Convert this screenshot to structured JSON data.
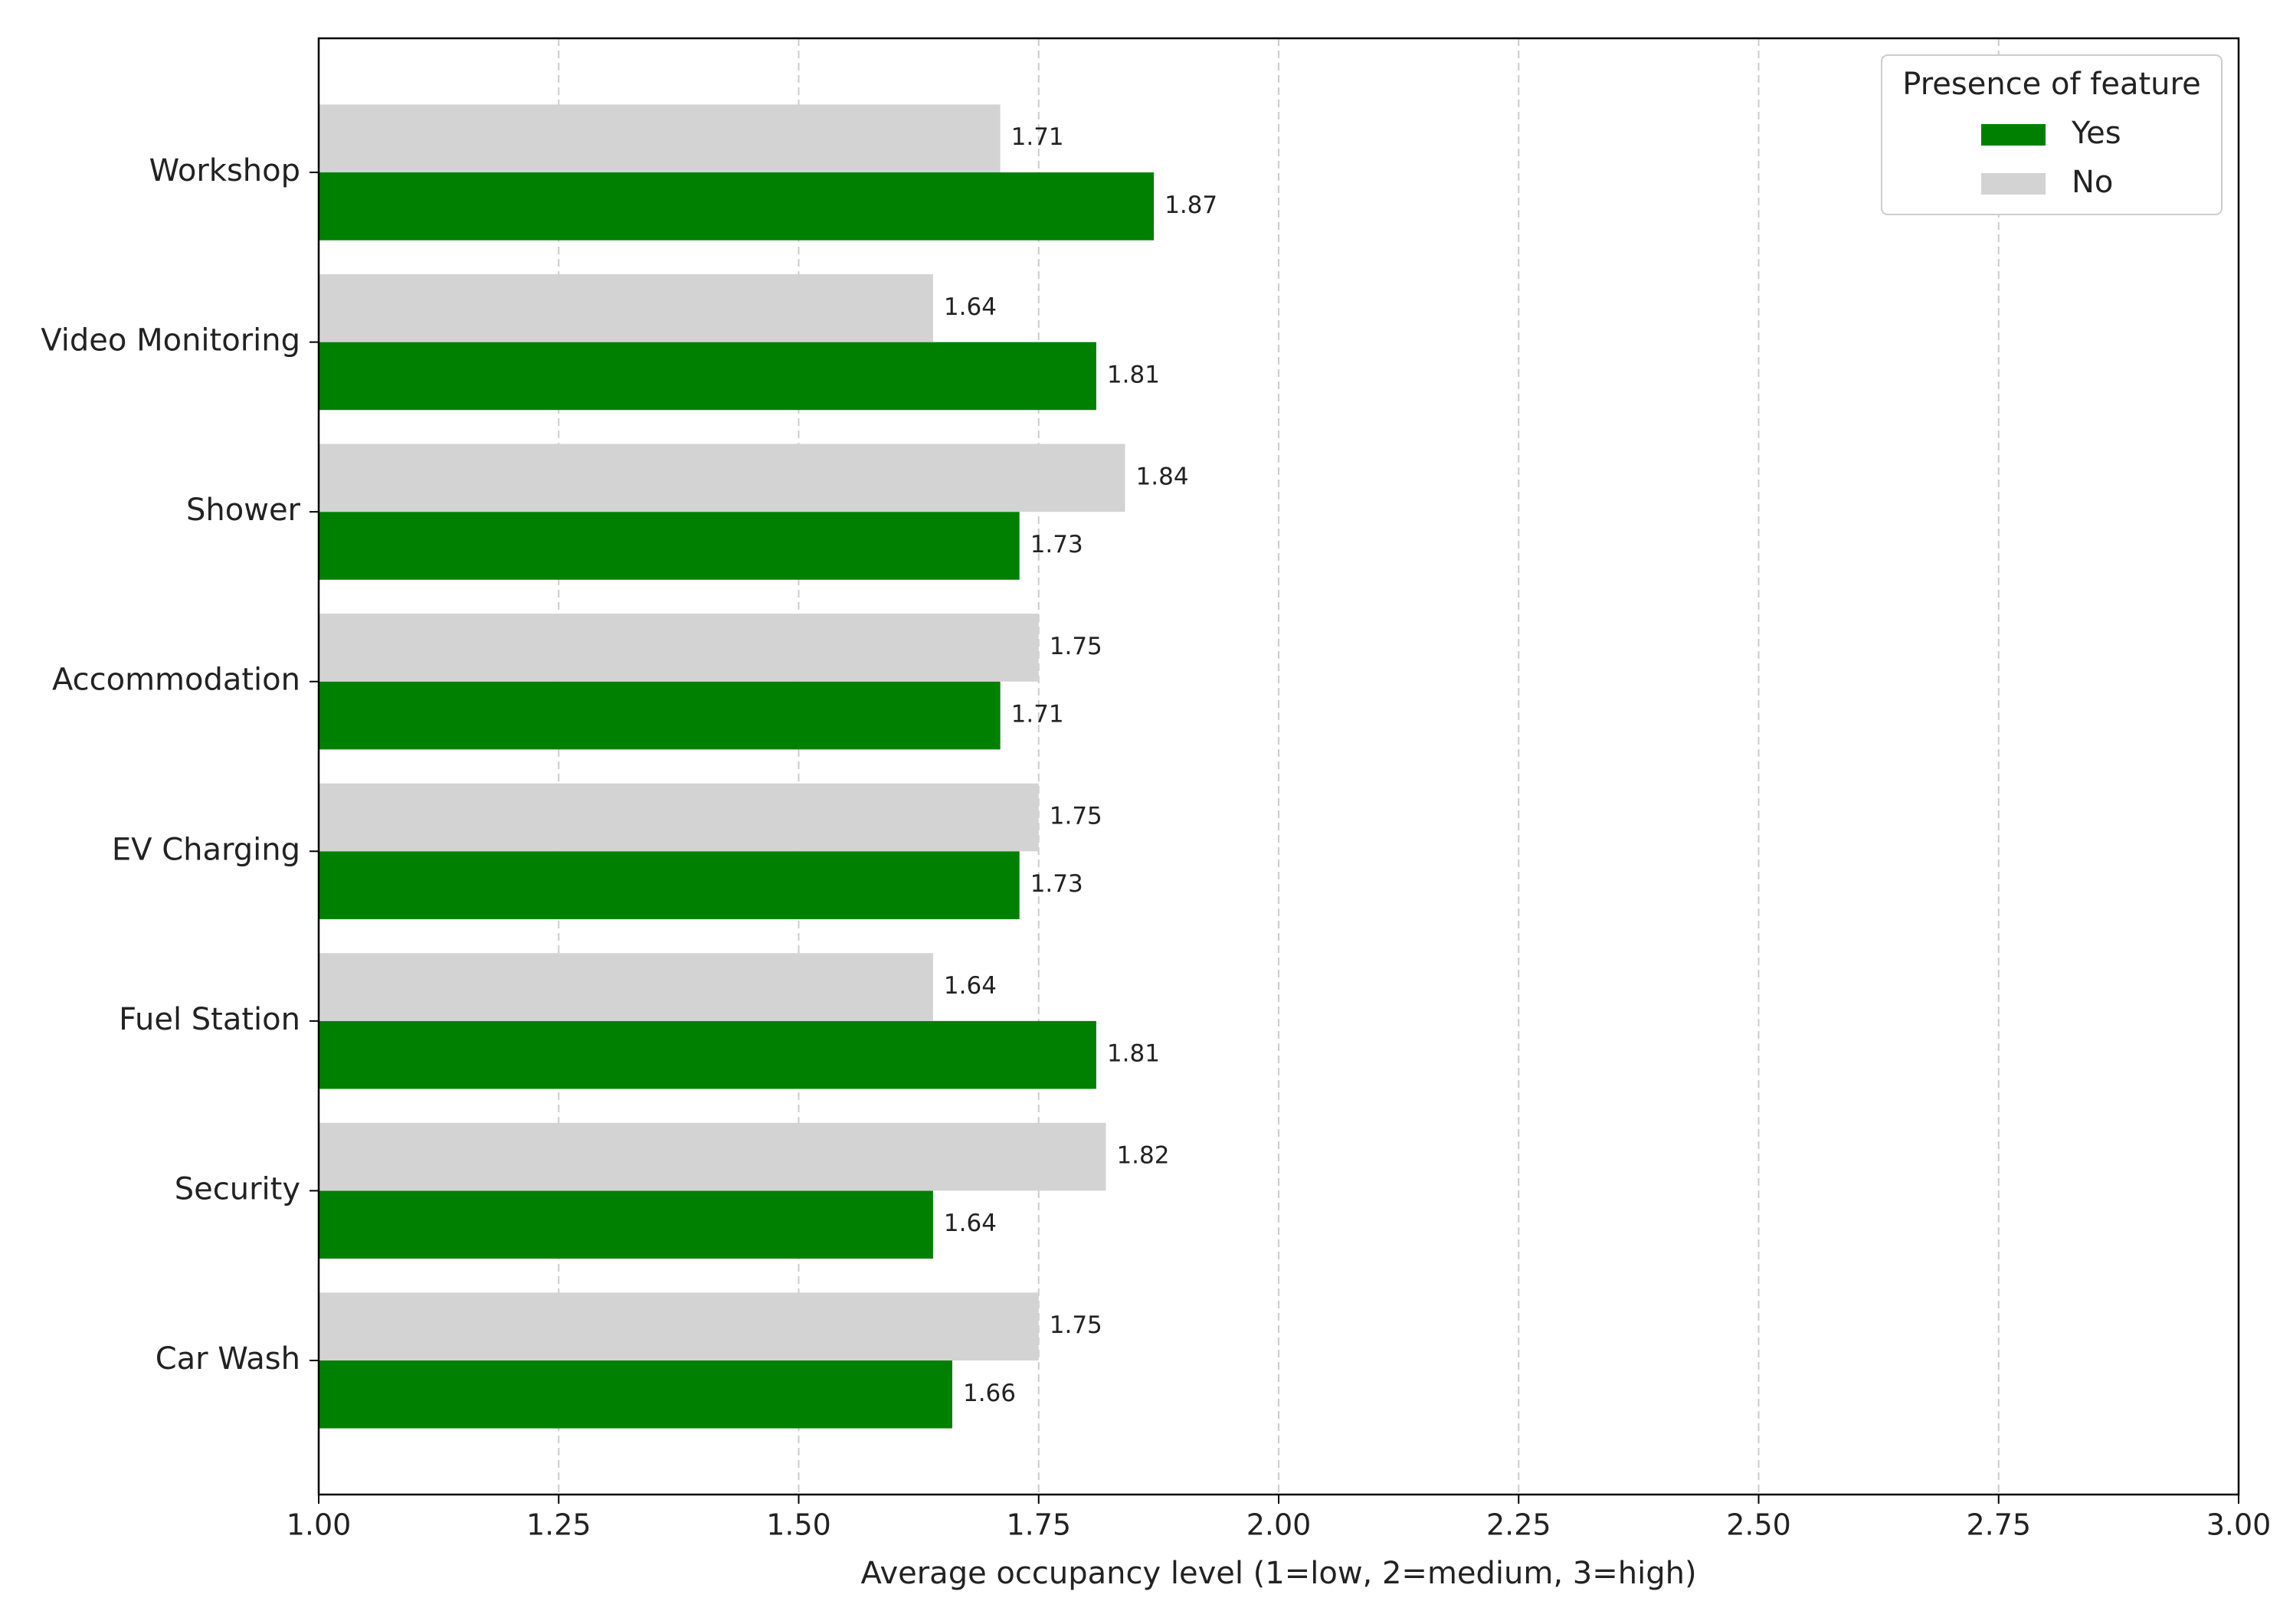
{
  "chart_data": {
    "type": "barh",
    "x_label": "Average occupancy level (1=low, 2=medium, 3=high)",
    "categories": [
      "Workshop",
      "Video Monitoring",
      "Shower",
      "Accommodation",
      "EV Charging",
      "Fuel Station",
      "Security",
      "Car Wash"
    ],
    "series": [
      {
        "name": "Yes",
        "color": "#008000",
        "values": [
          1.87,
          1.81,
          1.73,
          1.71,
          1.73,
          1.81,
          1.64,
          1.66
        ]
      },
      {
        "name": "No",
        "color": "#d3d3d3",
        "values": [
          1.71,
          1.64,
          1.84,
          1.75,
          1.75,
          1.64,
          1.82,
          1.75
        ]
      }
    ],
    "xlim": [
      1,
      3
    ],
    "xticks": [
      {
        "value": 1,
        "label": "1.00"
      },
      {
        "value": 1.25,
        "label": "1.25"
      },
      {
        "value": 1.5,
        "label": "1.50"
      },
      {
        "value": 1.75,
        "label": "1.75"
      },
      {
        "value": 2,
        "label": "2.00"
      },
      {
        "value": 2.25,
        "label": "2.25"
      },
      {
        "value": 2.5,
        "label": "2.50"
      },
      {
        "value": 2.75,
        "label": "2.75"
      },
      {
        "value": 3,
        "label": "3.00"
      }
    ],
    "grid": true,
    "legend_title": "Presence of feature",
    "legend_position": "upper-right"
  }
}
